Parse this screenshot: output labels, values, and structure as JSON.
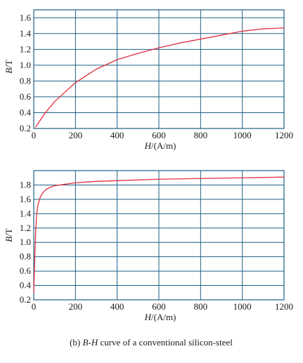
{
  "chart_data": [
    {
      "type": "line",
      "xlabel_var": "H",
      "xlabel_unit": "/(A/m)",
      "ylabel_var": "B",
      "ylabel_unit": "/T",
      "xlim": [
        0,
        1200
      ],
      "ylim": [
        0.2,
        1.7
      ],
      "xticks": [
        0,
        200,
        400,
        600,
        800,
        1000,
        1200
      ],
      "yticks": [
        0.2,
        0.4,
        0.6,
        0.8,
        1.0,
        1.2,
        1.4,
        1.6
      ],
      "ytick_labels": [
        "0.2",
        "0.4",
        "0.6",
        "0.8",
        "1.0",
        "1.2",
        "1.4",
        "1.6"
      ],
      "grid": true,
      "grid_color": "#1f5f86",
      "line_color": "#e03040",
      "series": [
        {
          "x": [
            10,
            50,
            100,
            200,
            300,
            400,
            500,
            600,
            700,
            800,
            900,
            1000,
            1100,
            1200
          ],
          "y": [
            0.22,
            0.38,
            0.54,
            0.78,
            0.95,
            1.07,
            1.15,
            1.22,
            1.28,
            1.33,
            1.38,
            1.43,
            1.46,
            1.47
          ]
        }
      ]
    },
    {
      "type": "line",
      "xlabel_var": "H",
      "xlabel_unit": "/(A/m)",
      "ylabel_var": "B",
      "ylabel_unit": "/T",
      "xlim": [
        0,
        1200
      ],
      "ylim": [
        0.2,
        2.0
      ],
      "xticks": [
        0,
        200,
        400,
        600,
        800,
        1000,
        1200
      ],
      "yticks": [
        0.2,
        0.4,
        0.6,
        0.8,
        1.0,
        1.2,
        1.4,
        1.6,
        1.8
      ],
      "ytick_labels": [
        "0.2",
        "0.4",
        "0.6",
        "0.8",
        "1.0",
        "1.2",
        "1.4",
        "1.6",
        "1.8"
      ],
      "grid": true,
      "grid_color": "#1f5f86",
      "line_color": "#e03040",
      "series": [
        {
          "x": [
            0,
            5,
            10,
            15,
            20,
            30,
            40,
            60,
            80,
            100,
            150,
            200,
            300,
            400,
            600,
            800,
            1000,
            1200
          ],
          "y": [
            0.3,
            0.8,
            1.2,
            1.42,
            1.52,
            1.62,
            1.68,
            1.74,
            1.77,
            1.79,
            1.81,
            1.83,
            1.85,
            1.86,
            1.88,
            1.89,
            1.9,
            1.91
          ]
        }
      ]
    }
  ],
  "caption": {
    "prefix": "(b) ",
    "var1": "B",
    "dash": "-",
    "var2": "H",
    "rest": " curve of a conventional silicon-steel"
  }
}
